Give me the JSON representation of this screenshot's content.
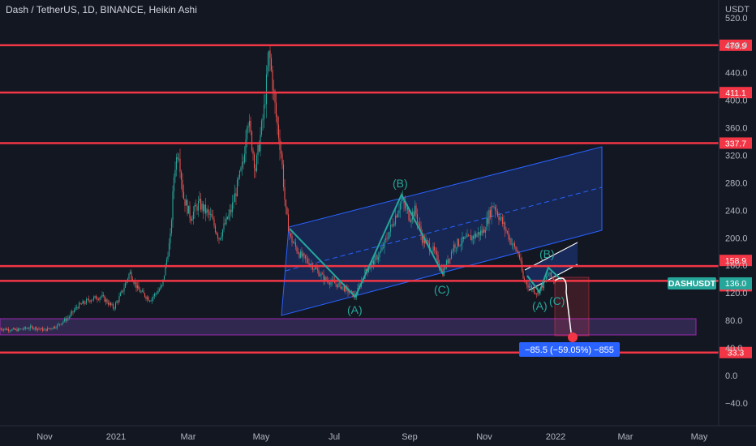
{
  "header": {
    "title": "Dash / TetherUS, 1D, BINANCE, Heikin Ashi"
  },
  "chart_data": {
    "type": "candlestick",
    "currency_label": "USDT",
    "y_ticks": [
      520,
      480,
      440,
      400,
      360,
      320,
      280,
      240,
      200,
      160,
      120,
      80,
      40,
      0,
      -40
    ],
    "y_tick_labels": [
      "520.0",
      "480.0",
      "440.0",
      "400.0",
      "360.0",
      "320.0",
      "280.0",
      "240.0",
      "200.0",
      "160.0",
      "120.0",
      "80.0",
      "40.0",
      "0.0",
      "−40.0"
    ],
    "x_ticks": [
      "Nov",
      "2021",
      "Mar",
      "May",
      "Jul",
      "Sep",
      "Nov",
      "2022",
      "Mar",
      "May"
    ],
    "ylim": [
      -60,
      545
    ],
    "grid": false,
    "horizontal_levels": [
      479.9,
      411.1,
      337.7,
      158.9,
      137.4,
      33.3
    ],
    "level_labels": [
      "479.9",
      "411.1",
      "337.7",
      "158.9",
      "137.4",
      "33.3"
    ],
    "current_price": 136.0,
    "current_price_text": "136.0",
    "symbol_label": "DASHUSDT",
    "support_zone": [
      66,
      83
    ],
    "wave_labels": [
      "(B)",
      "(A)",
      "(C)",
      "(B)",
      "(A)",
      "(C)"
    ],
    "measure_label": "−85.5 (−59.05%) −855",
    "colors": {
      "background": "#131722",
      "up": "#26a69a",
      "down": "#ef5350",
      "level_line": "#f23645",
      "channel_fill": "#1e2f6b",
      "channel_line": "#2962ff",
      "wave": "#26a69a",
      "zone": "#7e57c2",
      "measure": "#2962ff"
    }
  }
}
